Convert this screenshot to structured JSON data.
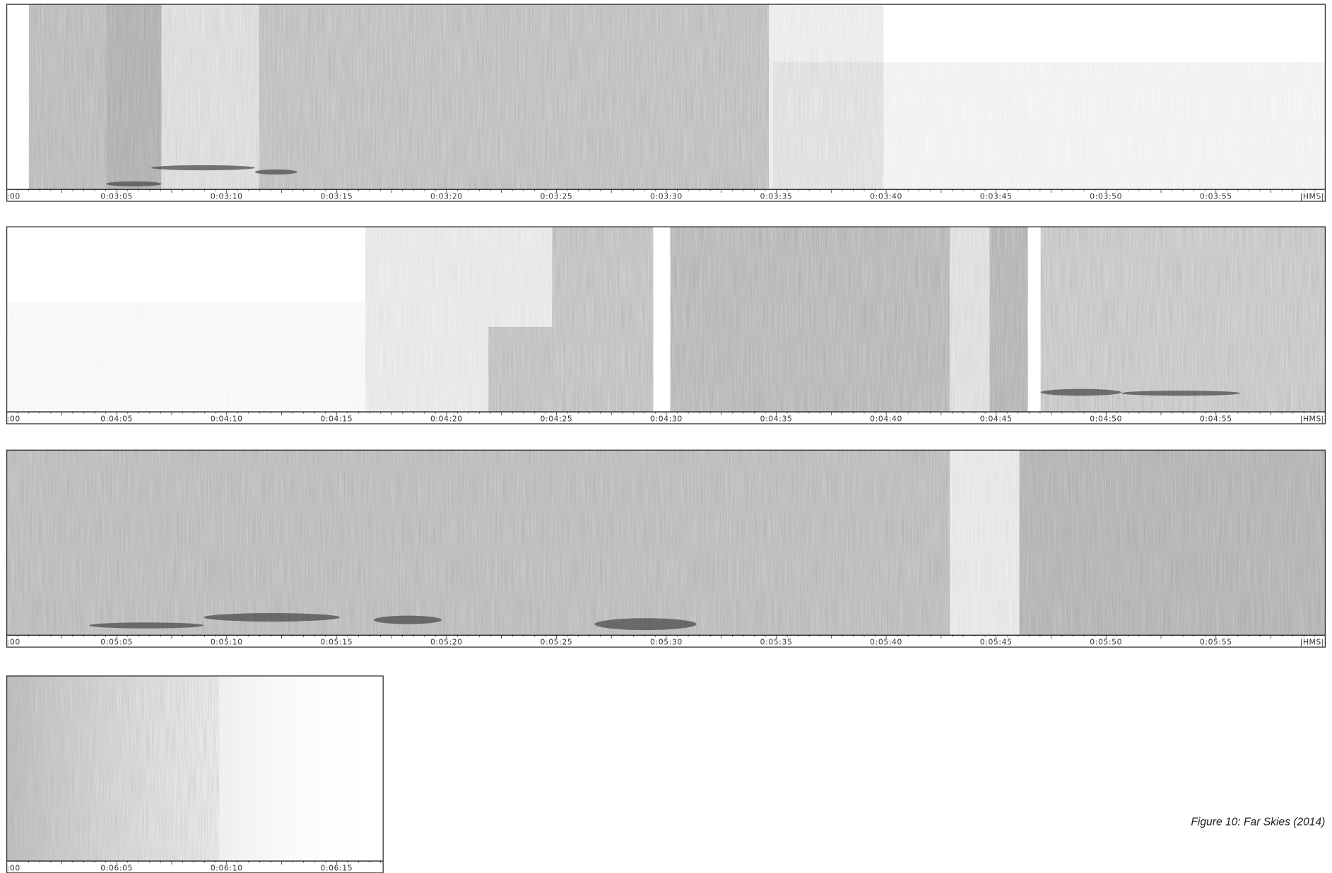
{
  "panels": [
    {
      "ticks": [
        ":00",
        "0:03:05",
        "0:03:10",
        "0:03:15",
        "0:03:20",
        "0:03:25",
        "0:03:30",
        "0:03:35",
        "0:03:40",
        "0:03:45",
        "0:03:50",
        "0:03:55",
        "|HMS|"
      ]
    },
    {
      "ticks": [
        ":00",
        "0:04:05",
        "0:04:10",
        "0:04:15",
        "0:04:20",
        "0:04:25",
        "0:04:30",
        "0:04:35",
        "0:04:40",
        "0:04:45",
        "0:04:50",
        "0:04:55",
        "|HMS|"
      ]
    },
    {
      "ticks": [
        ":00",
        "0:05:05",
        "0:05:10",
        "0:05:15",
        "0:05:20",
        "0:05:25",
        "0:05:30",
        "0:05:35",
        "0:05:40",
        "0:05:45",
        "0:05:50",
        "0:05:55",
        "|HMS|"
      ]
    },
    {
      "ticks": [
        ":00",
        "0:06:05",
        "0:06:10",
        "0:06:15"
      ]
    }
  ],
  "caption": "Figure 10: Far Skies (2014)"
}
